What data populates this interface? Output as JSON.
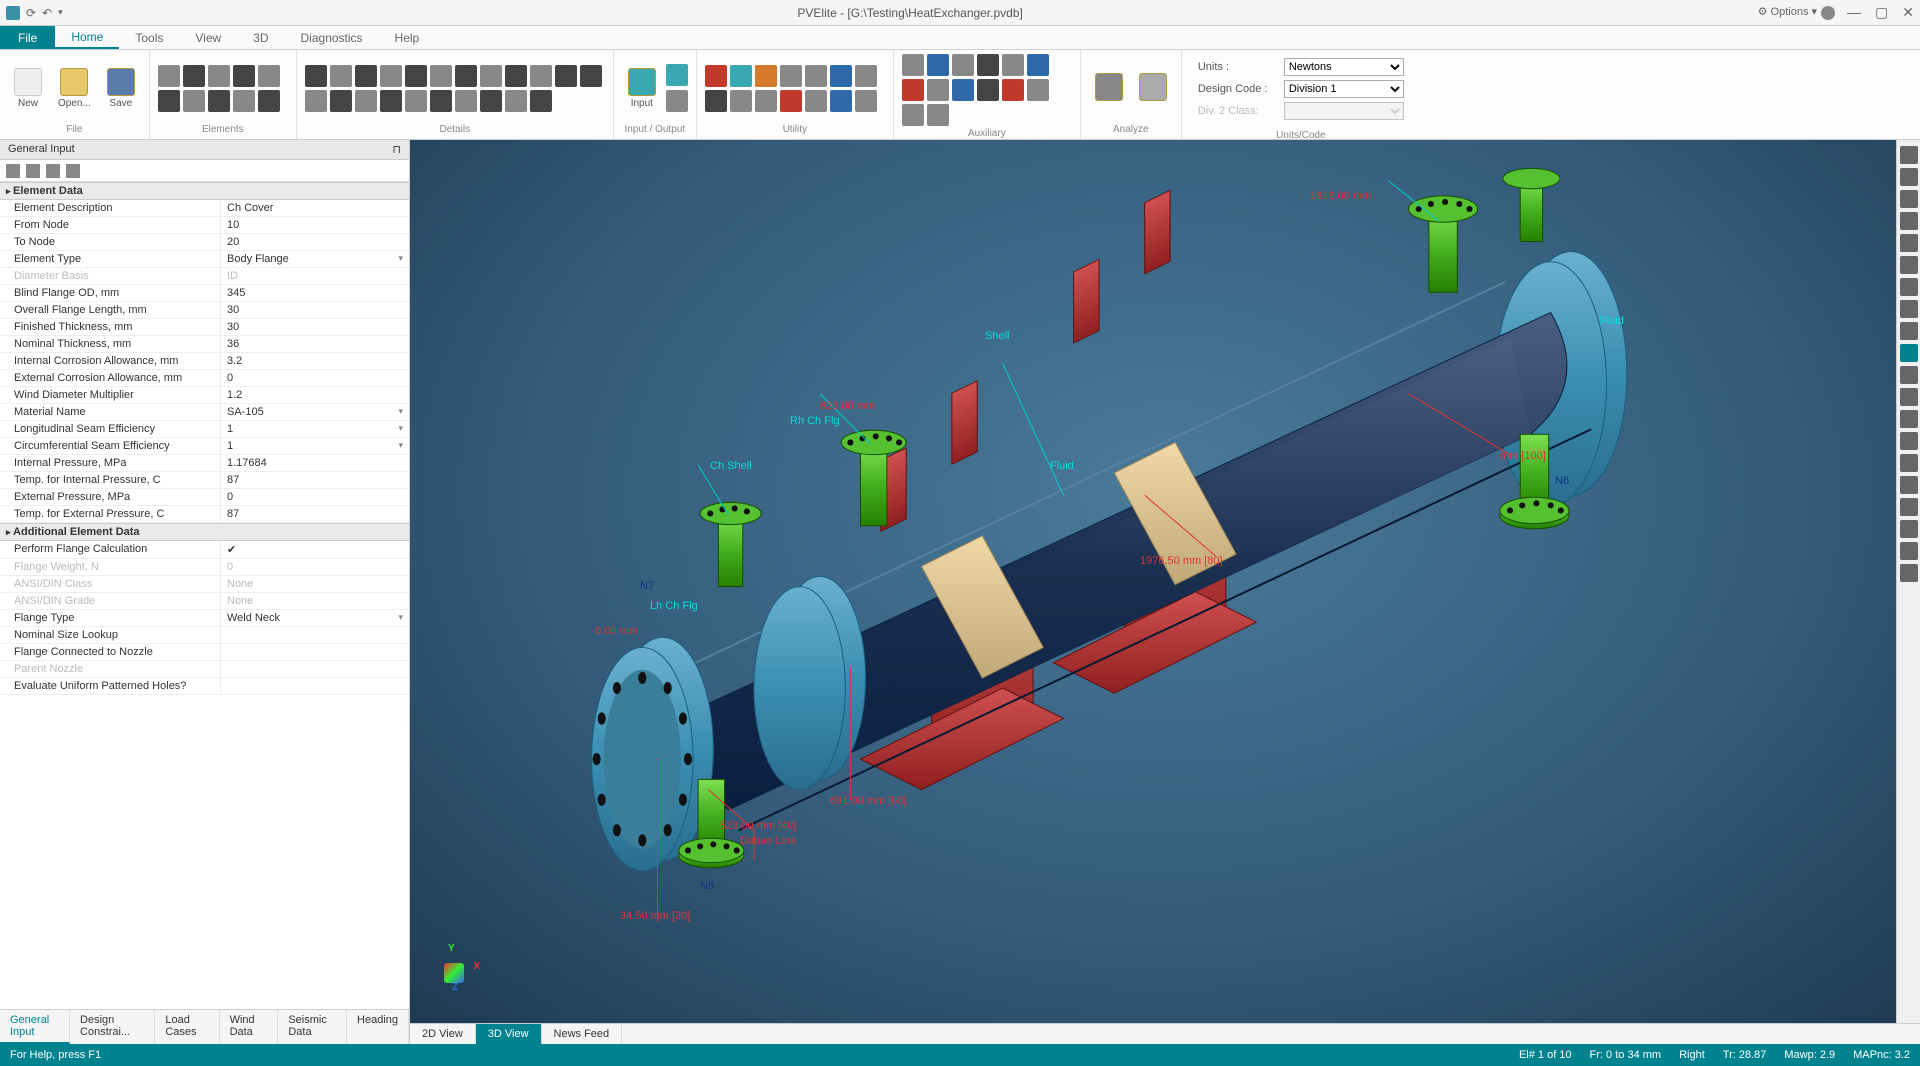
{
  "title": "PVElite - [G:\\Testing\\HeatExchanger.pvdb]",
  "options_label": "Options",
  "menu": {
    "file": "File",
    "tabs": [
      "Home",
      "Tools",
      "View",
      "3D",
      "Diagnostics",
      "Help"
    ],
    "active": "Home"
  },
  "ribbon": {
    "file_group": {
      "new": "New",
      "open": "Open...",
      "save": "Save",
      "label": "File"
    },
    "elements_label": "Elements",
    "details_label": "Details",
    "io": {
      "input": "Input",
      "label": "Input / Output"
    },
    "utility_label": "Utility",
    "aux_label": "Auxiliary",
    "analyze_label": "Analyze",
    "units": {
      "units_label": "Units :",
      "units_value": "Newtons",
      "code_label": "Design Code :",
      "code_value": "Division 1",
      "div2_label": "Div. 2 Class:",
      "group_label": "Units/Code"
    }
  },
  "left": {
    "title": "General Input",
    "section1": "Element Data",
    "rows1": [
      {
        "l": "Element Description",
        "v": "Ch Cover"
      },
      {
        "l": "From Node",
        "v": "10"
      },
      {
        "l": "To Node",
        "v": "20"
      },
      {
        "l": "Element Type",
        "v": "Body Flange",
        "sel": true
      },
      {
        "l": "Diameter Basis",
        "v": "ID",
        "dis": true
      },
      {
        "l": "Blind Flange OD, mm",
        "v": "345"
      },
      {
        "l": "Overall Flange Length, mm",
        "v": "30"
      },
      {
        "l": "Finished Thickness, mm",
        "v": "30"
      },
      {
        "l": "Nominal Thickness, mm",
        "v": "36"
      },
      {
        "l": "Internal Corrosion Allowance, mm",
        "v": "3.2"
      },
      {
        "l": "External Corrosion Allowance, mm",
        "v": "0"
      },
      {
        "l": "Wind Diameter Multiplier",
        "v": "1.2"
      },
      {
        "l": "Material Name",
        "v": "SA-105",
        "sel": true
      },
      {
        "l": "Longitudinal Seam Efficiency",
        "v": "1",
        "sel": true
      },
      {
        "l": "Circumferential Seam Efficiency",
        "v": "1",
        "sel": true
      },
      {
        "l": "Internal Pressure, MPa",
        "v": "1.17684"
      },
      {
        "l": "Temp. for Internal Pressure, C",
        "v": "87"
      },
      {
        "l": "External Pressure, MPa",
        "v": "0"
      },
      {
        "l": "Temp. for External Pressure, C",
        "v": "87"
      }
    ],
    "section2": "Additional Element Data",
    "rows2": [
      {
        "l": "Perform Flange Calculation",
        "v": "",
        "chk": true
      },
      {
        "l": "Flange Weight, N",
        "v": "0",
        "dis": true
      },
      {
        "l": "ANSI/DIN Class",
        "v": "None",
        "dis": true
      },
      {
        "l": "ANSI/DIN Grade",
        "v": "None",
        "dis": true
      },
      {
        "l": "Flange Type",
        "v": "Weld Neck",
        "sel": true
      },
      {
        "l": "Nominal Size Lookup",
        "v": ""
      },
      {
        "l": "Flange Connected to Nozzle",
        "v": ""
      },
      {
        "l": "Parent Nozzle",
        "v": "",
        "dis": true
      },
      {
        "l": "Evaluate Uniform Patterned Holes?",
        "v": ""
      }
    ],
    "tabs": [
      "General Input",
      "Design Constrai...",
      "Load Cases",
      "Wind Data",
      "Seismic Data",
      "Heading"
    ],
    "active_tab": "General Input"
  },
  "view": {
    "tabs": [
      "2D View",
      "3D View",
      "News Feed"
    ],
    "active": "3D View",
    "annotations": {
      "n7": "N7",
      "n8": "N8",
      "n6": "N6",
      "lh_ch": "Lh Ch Flg",
      "ch_shell": "Ch Shell",
      "rh_ch": "Rh Ch Flg",
      "shell": "Shell",
      "fluid1": "Fluid",
      "fluid2": "Fluid",
      "zero": "0.00 mm",
      "d20": "34.50 mm  [20]",
      "d40": "523.00 mm  [40]",
      "datum": "Datum Line",
      "d60": "691.00 mm  [60]",
      "d623": "623.00 mm",
      "d80": "1976.50 mm  [80]",
      "d100": "mm  [100]",
      "top_dim": "1816.00 mm"
    },
    "colors": {
      "shell": "#2a3f5f",
      "flange": "#4a8eb0",
      "nozzle": "#55c030",
      "saddle": "#b03030",
      "band": "#d8bc88",
      "bolt": "#111"
    }
  },
  "status": {
    "help": "For Help, press F1",
    "right": [
      "El# 1 of 10",
      "Fr: 0 to 34 mm",
      "Right",
      "Tr: 28.87",
      "Mawp: 2.9",
      "MAPnc: 3.2"
    ]
  }
}
